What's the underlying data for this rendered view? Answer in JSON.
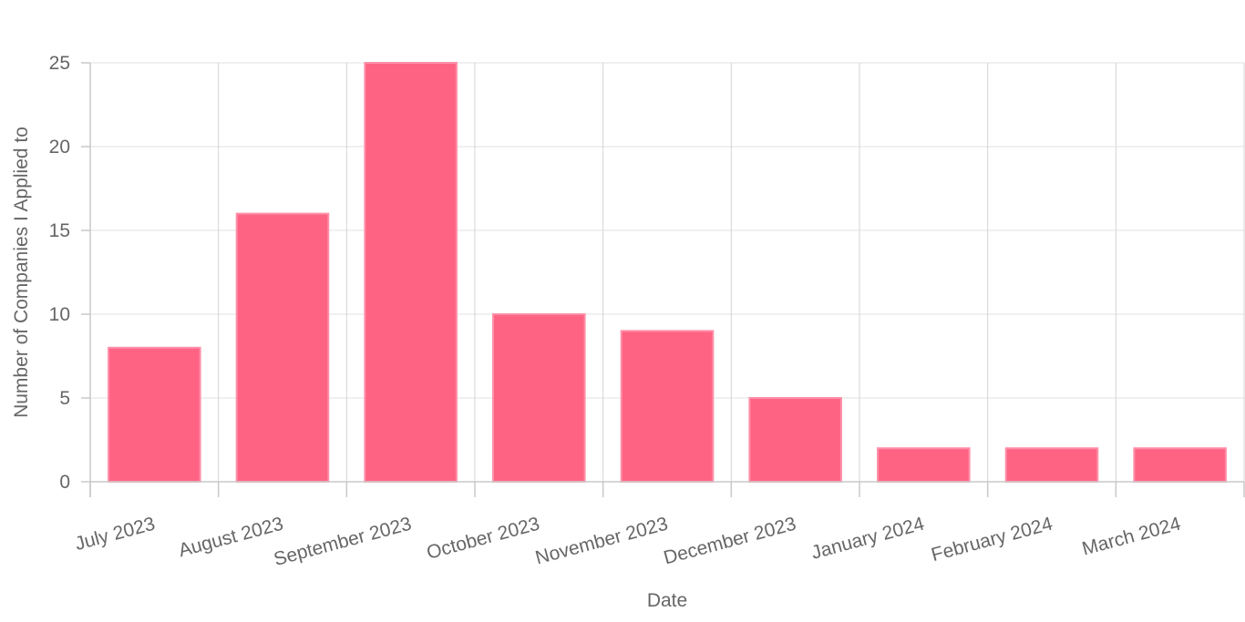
{
  "chart_data": {
    "type": "bar",
    "categories": [
      "July 2023",
      "August 2023",
      "September 2023",
      "October 2023",
      "November 2023",
      "December 2023",
      "January 2024",
      "February 2024",
      "March 2024"
    ],
    "values": [
      8,
      16,
      25,
      10,
      9,
      5,
      2,
      2,
      2
    ],
    "xlabel": "Date",
    "ylabel": "Number of Companies I Applied to",
    "ylim": [
      0,
      25
    ],
    "yticks": [
      0,
      5,
      10,
      15,
      20,
      25
    ],
    "grid": true,
    "colors": {
      "bar_fill": "#ff6384",
      "bar_border": "#ff8fa8"
    }
  }
}
